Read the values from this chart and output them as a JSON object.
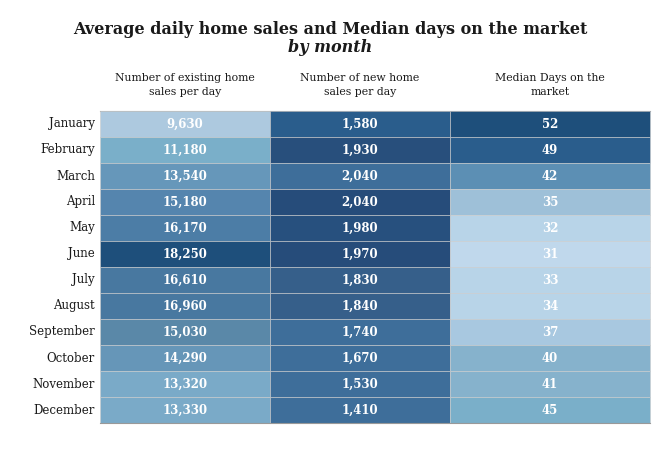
{
  "title_line1": "Average daily home sales and Median days on the market",
  "title_line2": "by month",
  "col_headers": [
    "Number of existing home\nsales per day",
    "Number of new home\nsales per day",
    "Median Days on the\nmarket"
  ],
  "months": [
    "January",
    "February",
    "March",
    "April",
    "May",
    "June",
    "July",
    "August",
    "September",
    "October",
    "November",
    "December"
  ],
  "existing_sales": [
    "9,630",
    "11,180",
    "13,540",
    "15,180",
    "16,170",
    "18,250",
    "16,610",
    "16,960",
    "15,030",
    "14,290",
    "13,320",
    "13,330"
  ],
  "new_sales": [
    "1,580",
    "1,930",
    "2,040",
    "2,040",
    "1,980",
    "1,970",
    "1,830",
    "1,840",
    "1,740",
    "1,670",
    "1,530",
    "1,410"
  ],
  "median_days": [
    "52",
    "49",
    "42",
    "35",
    "32",
    "31",
    "33",
    "34",
    "37",
    "40",
    "41",
    "45"
  ],
  "col1_colors": [
    "#adc9df",
    "#7aafc9",
    "#6697ba",
    "#5585ae",
    "#4c7da6",
    "#1e4f7b",
    "#4878a0",
    "#4878a0",
    "#5a88a8",
    "#6696b8",
    "#7aaac8",
    "#7aaac8"
  ],
  "col2_colors": [
    "#2a5d8c",
    "#284f7c",
    "#3e6e9a",
    "#264c7a",
    "#27507e",
    "#264c7a",
    "#365f8a",
    "#365f8a",
    "#3e6e9a",
    "#3e6e9a",
    "#3e6e9a",
    "#3e6e9a"
  ],
  "col3_colors": [
    "#1e4f7b",
    "#2a5d8c",
    "#5c8fb4",
    "#9ec0d8",
    "#b8d4e8",
    "#c0d8ec",
    "#b8d4e8",
    "#b8d4e8",
    "#a8c8e0",
    "#86b2cc",
    "#86b2cc",
    "#7aafc9"
  ],
  "bg_color": "#ffffff",
  "text_dark": "#1a1a1a",
  "text_white": "#ffffff"
}
